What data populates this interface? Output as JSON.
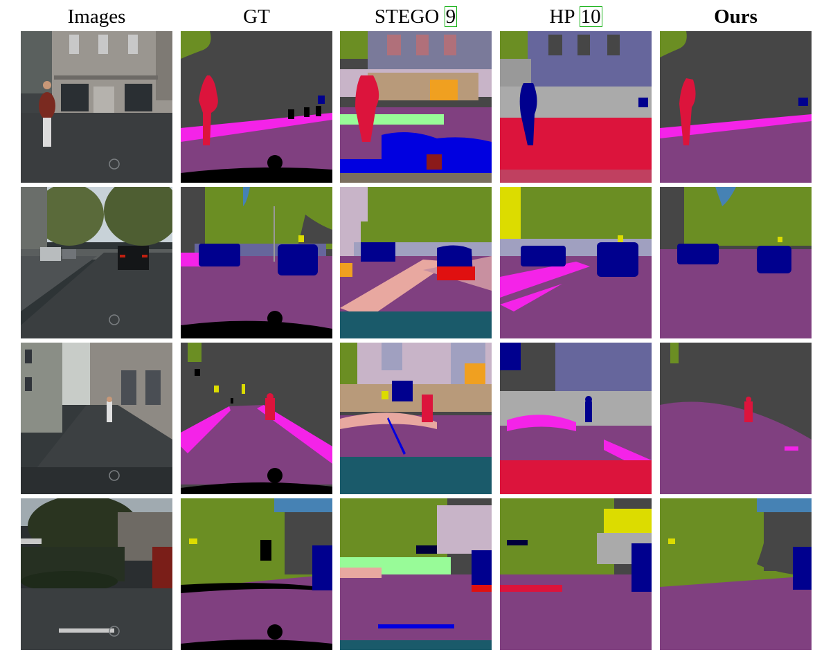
{
  "columns": [
    {
      "key": "images",
      "label": "Images",
      "ref": "",
      "bold": false
    },
    {
      "key": "gt",
      "label": "GT",
      "ref": "",
      "bold": false
    },
    {
      "key": "stego",
      "label": "STEGO ",
      "ref": "9",
      "bold": false
    },
    {
      "key": "hp",
      "label": "HP ",
      "ref": "10",
      "bold": false
    },
    {
      "key": "ours",
      "label": "Ours",
      "ref": "",
      "bold": true
    }
  ],
  "colors": {
    "road": "#804080",
    "sidewalk": "#f423e8",
    "building": "#464646",
    "vegetation": "#6b8e23",
    "sky": "#4682b4",
    "car": "#00008e",
    "person": "#dc143c",
    "pole": "#999999",
    "traffic_sign": "#dcdc00",
    "ego_vehicle": "#000000",
    "wall": "#66669c",
    "fence": "#be9999",
    "terrain": "#98fb98"
  }
}
